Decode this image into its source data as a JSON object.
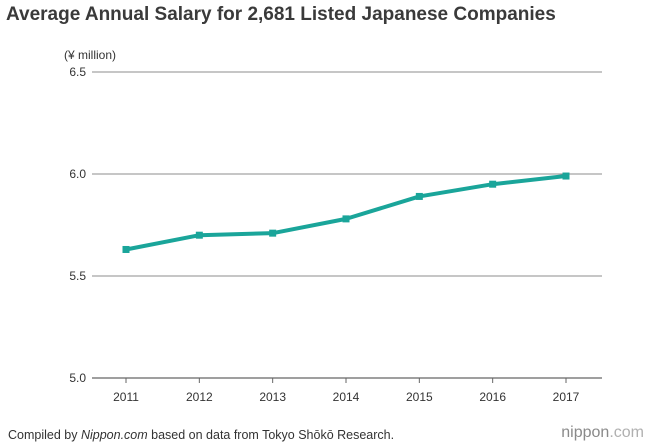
{
  "chart_data": {
    "type": "line",
    "title": "Average Annual Salary for 2,681 Listed Japanese Companies",
    "ylabel": "(¥ million)",
    "xlabel": "",
    "ylim": [
      5.0,
      6.5
    ],
    "yticks": [
      "5.0",
      "5.5",
      "6.0",
      "6.5"
    ],
    "x": [
      "2011",
      "2012",
      "2013",
      "2014",
      "2015",
      "2016",
      "2017"
    ],
    "series": [
      {
        "name": "Average annual salary",
        "values": [
          5.63,
          5.7,
          5.71,
          5.78,
          5.89,
          5.95,
          5.99
        ]
      }
    ],
    "grid": true,
    "colors": {
      "line": "#1aa59a",
      "grid": "#8c8c8c",
      "axis": "#666666"
    }
  },
  "footer": {
    "prefix": "Compiled by ",
    "source_name": "Nippon.com",
    "suffix": " based on data from Tokyo Shōkō Research."
  },
  "logo": {
    "name": "nippon",
    "dot": ".com"
  }
}
